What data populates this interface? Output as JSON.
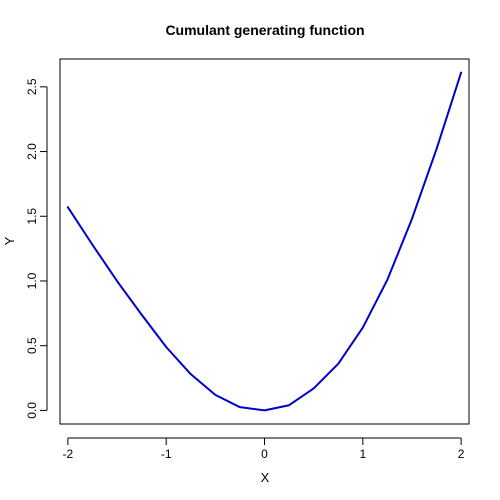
{
  "chart_data": {
    "type": "line",
    "title": "Cumulant generating function",
    "xlabel": "X",
    "ylabel": "Y",
    "xlim": [
      -2.08,
      2.08
    ],
    "ylim": [
      -0.105,
      2.715
    ],
    "xticks": [
      -2,
      -1,
      0,
      1,
      2
    ],
    "yticks": [
      0.0,
      0.5,
      1.0,
      1.5,
      2.0,
      2.5
    ],
    "xtick_labels": [
      "-2",
      "-1",
      "0",
      "1",
      "2"
    ],
    "ytick_labels": [
      "0.0",
      "0.5",
      "1.0",
      "1.5",
      "2.0",
      "2.5"
    ],
    "grid": false,
    "legend": "none",
    "series": [
      {
        "color": "#0000cc",
        "x": [
          -2.0,
          -1.75,
          -1.5,
          -1.25,
          -1.0,
          -0.75,
          -0.5,
          -0.25,
          0.0,
          0.25,
          0.5,
          0.75,
          1.0,
          1.25,
          1.5,
          1.75,
          2.0
        ],
        "y": [
          1.57,
          1.28,
          1.0,
          0.74,
          0.49,
          0.28,
          0.12,
          0.025,
          0.0,
          0.04,
          0.17,
          0.36,
          0.64,
          1.01,
          1.48,
          2.02,
          2.61
        ]
      }
    ]
  }
}
